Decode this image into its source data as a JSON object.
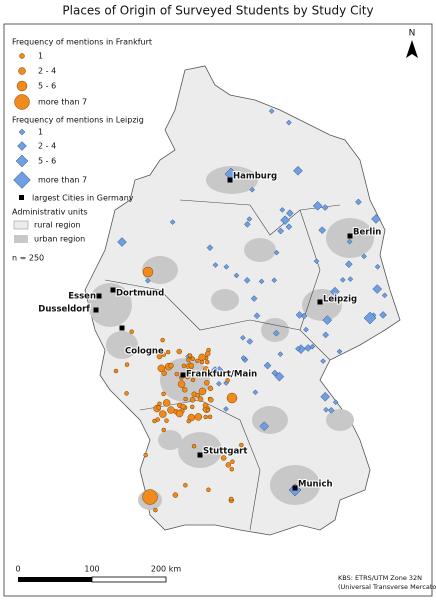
{
  "title": "Places of Origin of Surveyed Students by Study City",
  "north": "N",
  "legend": {
    "frankfurt": {
      "title": "Frequency of mentions in Frankfurt",
      "items": [
        "1",
        "2 - 4",
        "5 - 6",
        "more than 7"
      ]
    },
    "leipzig": {
      "title": "Frequency of mentions in Leipzig",
      "items": [
        "1",
        "2 - 4",
        "5 - 6",
        "more than 7"
      ]
    },
    "cities": "largest Cities in Germany",
    "admin": {
      "title": "Administrativ units",
      "items": [
        "rural region",
        "urban region"
      ]
    },
    "n": "n = 250"
  },
  "cities": [
    "Hamburg",
    "Berlin",
    "Essen",
    "Dortmund",
    "Dusseldorf",
    "Cologne",
    "Leipzig",
    "Frankfurt/Main",
    "Stuttgart",
    "Munich"
  ],
  "scale": [
    "0",
    "100",
    "200 km"
  ],
  "projection": [
    "KBS:   ETRS/UTM   Zone   32N",
    "(Universal Transverse Mercator)"
  ]
}
